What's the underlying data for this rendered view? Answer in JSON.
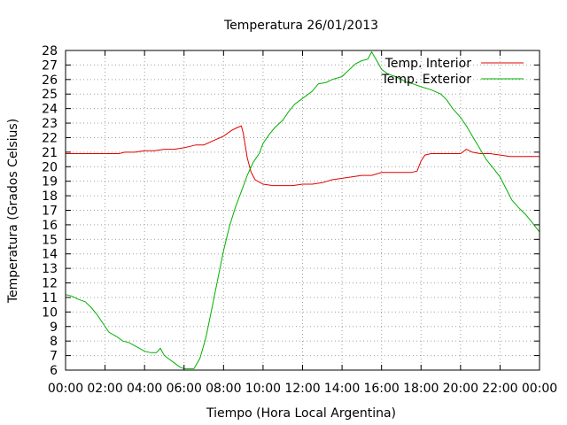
{
  "chart_data": {
    "type": "line",
    "title": "Temperatura 26/01/2013",
    "xlabel": "Tiempo (Hora Local Argentina)",
    "ylabel": "Temperatura (Grados Celsius)",
    "xlim": [
      0,
      24
    ],
    "ylim": [
      6,
      28
    ],
    "x_unit": "hours",
    "x_ticks": [
      "00:00",
      "02:00",
      "04:00",
      "06:00",
      "08:00",
      "10:00",
      "12:00",
      "14:00",
      "16:00",
      "18:00",
      "20:00",
      "22:00",
      "00:00"
    ],
    "y_ticks": [
      "6",
      "7",
      "8",
      "9",
      "10",
      "11",
      "12",
      "13",
      "14",
      "15",
      "16",
      "17",
      "18",
      "19",
      "20",
      "21",
      "22",
      "23",
      "24",
      "25",
      "26",
      "27",
      "28"
    ],
    "grid": true,
    "legend_position": "top-right",
    "series": [
      {
        "name": "Temp. Interior",
        "color": "#e00000",
        "points": [
          [
            0.0,
            20.9
          ],
          [
            1.0,
            20.9
          ],
          [
            2.0,
            20.9
          ],
          [
            2.7,
            20.9
          ],
          [
            3.0,
            21.0
          ],
          [
            3.5,
            21.0
          ],
          [
            4.0,
            21.1
          ],
          [
            4.5,
            21.1
          ],
          [
            5.0,
            21.2
          ],
          [
            5.5,
            21.2
          ],
          [
            6.0,
            21.3
          ],
          [
            6.3,
            21.4
          ],
          [
            6.6,
            21.5
          ],
          [
            7.0,
            21.5
          ],
          [
            7.5,
            21.8
          ],
          [
            8.0,
            22.1
          ],
          [
            8.4,
            22.5
          ],
          [
            8.7,
            22.7
          ],
          [
            8.9,
            22.8
          ],
          [
            9.0,
            22.3
          ],
          [
            9.2,
            20.6
          ],
          [
            9.4,
            19.6
          ],
          [
            9.6,
            19.1
          ],
          [
            10.0,
            18.8
          ],
          [
            10.5,
            18.7
          ],
          [
            11.0,
            18.7
          ],
          [
            11.5,
            18.7
          ],
          [
            12.0,
            18.8
          ],
          [
            12.5,
            18.8
          ],
          [
            13.0,
            18.9
          ],
          [
            13.5,
            19.1
          ],
          [
            14.0,
            19.2
          ],
          [
            14.5,
            19.3
          ],
          [
            15.0,
            19.4
          ],
          [
            15.5,
            19.4
          ],
          [
            16.0,
            19.6
          ],
          [
            16.5,
            19.6
          ],
          [
            17.0,
            19.6
          ],
          [
            17.5,
            19.6
          ],
          [
            17.8,
            19.7
          ],
          [
            18.0,
            20.4
          ],
          [
            18.2,
            20.8
          ],
          [
            18.5,
            20.9
          ],
          [
            19.0,
            20.9
          ],
          [
            19.5,
            20.9
          ],
          [
            20.0,
            20.9
          ],
          [
            20.3,
            21.2
          ],
          [
            20.6,
            21.0
          ],
          [
            21.0,
            20.9
          ],
          [
            21.5,
            20.9
          ],
          [
            22.0,
            20.8
          ],
          [
            22.5,
            20.7
          ],
          [
            23.0,
            20.7
          ],
          [
            23.5,
            20.7
          ],
          [
            24.0,
            20.7
          ]
        ]
      },
      {
        "name": "Temp. Exterior",
        "color": "#00b000",
        "points": [
          [
            0.0,
            11.2
          ],
          [
            0.3,
            11.1
          ],
          [
            0.6,
            10.9
          ],
          [
            1.0,
            10.7
          ],
          [
            1.3,
            10.3
          ],
          [
            1.6,
            9.8
          ],
          [
            1.9,
            9.2
          ],
          [
            2.2,
            8.6
          ],
          [
            2.6,
            8.3
          ],
          [
            2.9,
            8.0
          ],
          [
            3.2,
            7.9
          ],
          [
            3.6,
            7.6
          ],
          [
            4.0,
            7.3
          ],
          [
            4.3,
            7.2
          ],
          [
            4.6,
            7.2
          ],
          [
            4.8,
            7.5
          ],
          [
            5.0,
            7.0
          ],
          [
            5.2,
            6.8
          ],
          [
            5.5,
            6.5
          ],
          [
            5.8,
            6.2
          ],
          [
            6.0,
            6.1
          ],
          [
            6.3,
            6.1
          ],
          [
            6.5,
            6.1
          ],
          [
            6.8,
            6.8
          ],
          [
            7.1,
            8.2
          ],
          [
            7.4,
            10.2
          ],
          [
            7.7,
            12.2
          ],
          [
            8.0,
            14.2
          ],
          [
            8.3,
            15.9
          ],
          [
            8.6,
            17.2
          ],
          [
            8.9,
            18.3
          ],
          [
            9.2,
            19.4
          ],
          [
            9.5,
            20.3
          ],
          [
            9.8,
            20.9
          ],
          [
            10.0,
            21.6
          ],
          [
            10.3,
            22.2
          ],
          [
            10.6,
            22.7
          ],
          [
            11.0,
            23.2
          ],
          [
            11.3,
            23.8
          ],
          [
            11.6,
            24.3
          ],
          [
            12.0,
            24.7
          ],
          [
            12.5,
            25.2
          ],
          [
            12.8,
            25.7
          ],
          [
            13.2,
            25.8
          ],
          [
            13.5,
            26.0
          ],
          [
            14.0,
            26.2
          ],
          [
            14.3,
            26.6
          ],
          [
            14.7,
            27.1
          ],
          [
            15.0,
            27.3
          ],
          [
            15.3,
            27.4
          ],
          [
            15.5,
            27.9
          ],
          [
            15.8,
            27.2
          ],
          [
            16.0,
            26.7
          ],
          [
            16.3,
            26.4
          ],
          [
            16.7,
            26.2
          ],
          [
            17.0,
            26.0
          ],
          [
            17.3,
            25.8
          ],
          [
            17.6,
            25.7
          ],
          [
            18.0,
            25.5
          ],
          [
            18.5,
            25.3
          ],
          [
            19.0,
            25.0
          ],
          [
            19.3,
            24.6
          ],
          [
            19.6,
            24.0
          ],
          [
            20.0,
            23.4
          ],
          [
            20.3,
            22.8
          ],
          [
            20.6,
            22.1
          ],
          [
            21.0,
            21.2
          ],
          [
            21.3,
            20.5
          ],
          [
            21.6,
            20.0
          ],
          [
            22.0,
            19.3
          ],
          [
            22.3,
            18.5
          ],
          [
            22.6,
            17.7
          ],
          [
            23.0,
            17.1
          ],
          [
            23.3,
            16.7
          ],
          [
            23.6,
            16.2
          ],
          [
            24.0,
            15.5
          ]
        ]
      }
    ]
  }
}
